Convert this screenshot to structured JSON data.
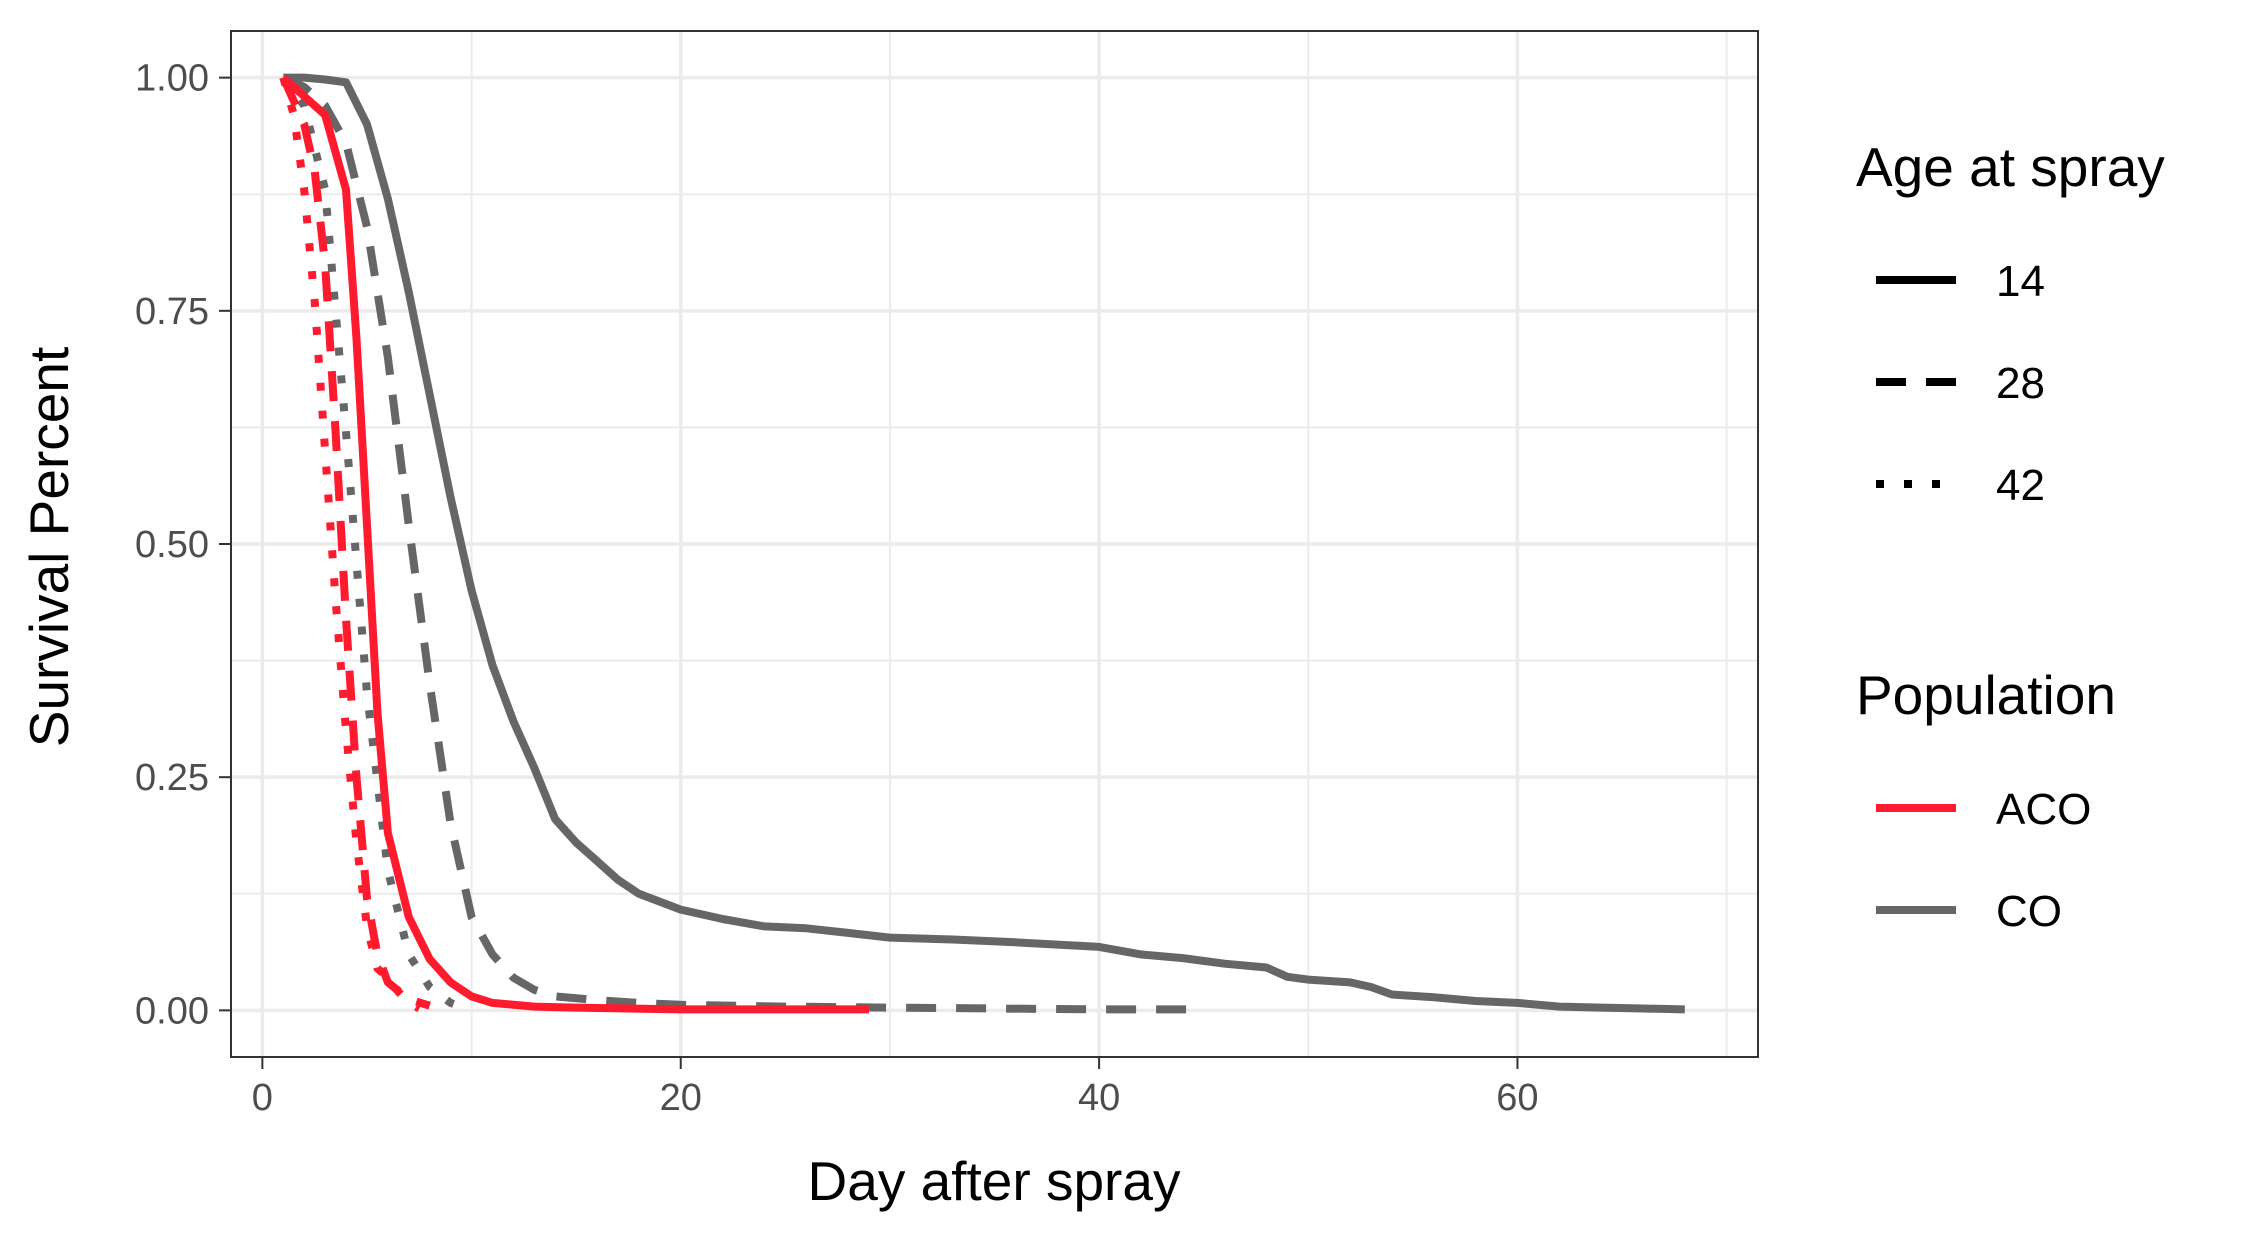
{
  "chart_data": {
    "type": "line",
    "xlabel": "Day after spray",
    "ylabel": "Survival Percent",
    "xlim": [
      -1.5,
      71.5
    ],
    "ylim": [
      -0.05,
      1.05
    ],
    "x_ticks": [
      0,
      20,
      40,
      60
    ],
    "x_tick_labels": [
      "0",
      "20",
      "40",
      "60"
    ],
    "y_ticks": [
      0,
      0.25,
      0.5,
      0.75,
      1
    ],
    "y_tick_labels": [
      "0.00",
      "0.25",
      "0.50",
      "0.75",
      "1.00"
    ],
    "grid": true,
    "legend_position": "right",
    "legend": {
      "linetype_title": "Age at spray",
      "linetype_items": [
        {
          "label": "14",
          "style": "solid"
        },
        {
          "label": "28",
          "style": "dashed"
        },
        {
          "label": "42",
          "style": "dotted"
        }
      ],
      "color_title": "Population",
      "color_items": [
        {
          "label": "ACO",
          "color": "#ff1a2e"
        },
        {
          "label": "CO",
          "color": "#666666"
        }
      ]
    },
    "colors": {
      "ACO": "#ff1a2e",
      "CO": "#666666",
      "grid": "#ebebeb",
      "panel_border": "#333333"
    },
    "series": [
      {
        "population": "CO",
        "age": "14",
        "style": "solid",
        "color": "#666666",
        "x": [
          1,
          2,
          3,
          4,
          5,
          6,
          7,
          8,
          9,
          10,
          11,
          12,
          13,
          14,
          15,
          16,
          17,
          18,
          20,
          22,
          24,
          26,
          28,
          30,
          33,
          36,
          40,
          42,
          44,
          46,
          48,
          49,
          50,
          52,
          53,
          54,
          56,
          58,
          60,
          62,
          64,
          66,
          68
        ],
        "y": [
          1.0,
          1.0,
          0.998,
          0.995,
          0.95,
          0.87,
          0.77,
          0.66,
          0.55,
          0.45,
          0.37,
          0.31,
          0.26,
          0.205,
          0.18,
          0.16,
          0.14,
          0.125,
          0.108,
          0.098,
          0.09,
          0.088,
          0.083,
          0.078,
          0.076,
          0.073,
          0.068,
          0.06,
          0.056,
          0.05,
          0.046,
          0.036,
          0.033,
          0.03,
          0.025,
          0.017,
          0.014,
          0.01,
          0.008,
          0.004,
          0.003,
          0.002,
          0.001
        ]
      },
      {
        "population": "CO",
        "age": "28",
        "style": "dashed",
        "color": "#666666",
        "x": [
          1,
          2,
          3,
          4,
          5,
          6,
          7,
          8,
          9,
          10,
          11,
          12,
          13,
          14,
          16,
          18,
          20,
          25,
          30,
          35,
          40,
          45
        ],
        "y": [
          1.0,
          0.99,
          0.97,
          0.93,
          0.84,
          0.7,
          0.52,
          0.35,
          0.2,
          0.1,
          0.06,
          0.035,
          0.022,
          0.015,
          0.011,
          0.008,
          0.006,
          0.004,
          0.003,
          0.002,
          0.001,
          0.001
        ]
      },
      {
        "population": "CO",
        "age": "42",
        "style": "dotted",
        "color": "#666666",
        "x": [
          1,
          2,
          3,
          4,
          5,
          6,
          7,
          8,
          9,
          10
        ],
        "y": [
          1.0,
          0.97,
          0.88,
          0.62,
          0.34,
          0.15,
          0.06,
          0.025,
          0.008,
          0.0
        ]
      },
      {
        "population": "ACO",
        "age": "14",
        "style": "solid",
        "color": "#ff1a2e",
        "x": [
          1,
          2,
          3,
          4,
          4.5,
          5,
          5.5,
          6,
          7,
          8,
          9,
          10,
          11,
          13,
          15,
          20,
          25,
          29
        ],
        "y": [
          1.0,
          0.98,
          0.96,
          0.88,
          0.72,
          0.52,
          0.32,
          0.19,
          0.1,
          0.055,
          0.03,
          0.015,
          0.008,
          0.004,
          0.003,
          0.001,
          0.001,
          0.001
        ]
      },
      {
        "population": "ACO",
        "age": "28",
        "style": "dashed",
        "color": "#ff1a2e",
        "x": [
          1,
          2,
          2.5,
          3,
          3.5,
          4,
          4.5,
          5,
          5.5,
          6,
          7,
          8
        ],
        "y": [
          1.0,
          0.95,
          0.9,
          0.8,
          0.62,
          0.42,
          0.25,
          0.12,
          0.06,
          0.03,
          0.012,
          0.005
        ]
      },
      {
        "population": "ACO",
        "age": "42",
        "style": "dotted",
        "color": "#ff1a2e",
        "x": [
          1,
          1.5,
          2,
          2.5,
          3,
          3.5,
          4,
          4.5,
          5,
          5.5,
          6,
          6.5,
          7,
          7.5
        ],
        "y": [
          1.0,
          0.96,
          0.88,
          0.76,
          0.6,
          0.44,
          0.3,
          0.18,
          0.09,
          0.045,
          0.035,
          0.02,
          0.008,
          0.002
        ]
      }
    ]
  }
}
